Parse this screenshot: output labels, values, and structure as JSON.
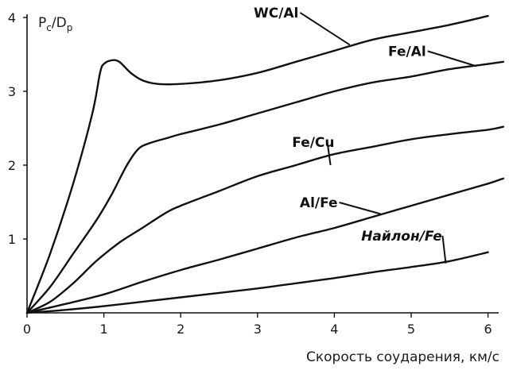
{
  "chart_data": {
    "type": "line",
    "ylabel": {
      "main": "P",
      "sub1": "c",
      "sep": "/D",
      "sub2": "p"
    },
    "xlabel": "Скорость соударения, км/с",
    "xlim": [
      0,
      6.2
    ],
    "ylim": [
      0,
      4.2
    ],
    "x_ticks": [
      0,
      1,
      2,
      3,
      4,
      5,
      6
    ],
    "y_ticks": [
      1,
      2,
      3,
      4
    ],
    "grid": false,
    "series": [
      {
        "name": "WC/Al",
        "style": "normal",
        "points": [
          [
            0,
            0
          ],
          [
            0.3,
            0.8
          ],
          [
            0.6,
            1.75
          ],
          [
            0.85,
            2.7
          ],
          [
            0.95,
            3.25
          ],
          [
            1.0,
            3.37
          ],
          [
            1.1,
            3.42
          ],
          [
            1.2,
            3.4
          ],
          [
            1.35,
            3.25
          ],
          [
            1.5,
            3.15
          ],
          [
            1.7,
            3.1
          ],
          [
            2.0,
            3.1
          ],
          [
            2.5,
            3.15
          ],
          [
            3.0,
            3.25
          ],
          [
            3.5,
            3.4
          ],
          [
            4.0,
            3.55
          ],
          [
            4.5,
            3.7
          ],
          [
            5.0,
            3.8
          ],
          [
            5.5,
            3.9
          ],
          [
            6.0,
            4.02
          ]
        ]
      },
      {
        "name": "Fe/Al",
        "style": "normal",
        "points": [
          [
            0,
            0
          ],
          [
            0.3,
            0.35
          ],
          [
            0.6,
            0.8
          ],
          [
            0.9,
            1.25
          ],
          [
            1.1,
            1.6
          ],
          [
            1.3,
            2.0
          ],
          [
            1.45,
            2.22
          ],
          [
            1.6,
            2.3
          ],
          [
            1.8,
            2.36
          ],
          [
            2.0,
            2.42
          ],
          [
            2.5,
            2.55
          ],
          [
            3.0,
            2.7
          ],
          [
            3.5,
            2.85
          ],
          [
            4.0,
            3.0
          ],
          [
            4.5,
            3.12
          ],
          [
            5.0,
            3.2
          ],
          [
            5.5,
            3.3
          ],
          [
            6.0,
            3.37
          ],
          [
            6.2,
            3.4
          ]
        ]
      },
      {
        "name": "Fe/Cu",
        "style": "normal",
        "points": [
          [
            0,
            0
          ],
          [
            0.3,
            0.15
          ],
          [
            0.6,
            0.4
          ],
          [
            0.9,
            0.7
          ],
          [
            1.2,
            0.95
          ],
          [
            1.5,
            1.15
          ],
          [
            1.8,
            1.35
          ],
          [
            2.0,
            1.45
          ],
          [
            2.5,
            1.65
          ],
          [
            3.0,
            1.85
          ],
          [
            3.5,
            2.0
          ],
          [
            4.0,
            2.15
          ],
          [
            4.5,
            2.25
          ],
          [
            5.0,
            2.35
          ],
          [
            5.5,
            2.42
          ],
          [
            6.0,
            2.48
          ],
          [
            6.2,
            2.52
          ]
        ]
      },
      {
        "name": "Al/Fe",
        "style": "normal",
        "points": [
          [
            0,
            0
          ],
          [
            0.5,
            0.12
          ],
          [
            1.0,
            0.25
          ],
          [
            1.5,
            0.42
          ],
          [
            2.0,
            0.58
          ],
          [
            2.5,
            0.72
          ],
          [
            3.0,
            0.87
          ],
          [
            3.5,
            1.02
          ],
          [
            4.0,
            1.15
          ],
          [
            4.5,
            1.3
          ],
          [
            5.0,
            1.45
          ],
          [
            5.5,
            1.6
          ],
          [
            6.0,
            1.75
          ],
          [
            6.2,
            1.82
          ]
        ]
      },
      {
        "name": "Найлон/Fe",
        "style": "italic",
        "points": [
          [
            0,
            0
          ],
          [
            0.5,
            0.04
          ],
          [
            1.0,
            0.09
          ],
          [
            1.5,
            0.15
          ],
          [
            2.0,
            0.21
          ],
          [
            2.5,
            0.27
          ],
          [
            3.0,
            0.33
          ],
          [
            3.5,
            0.4
          ],
          [
            4.0,
            0.47
          ],
          [
            4.5,
            0.55
          ],
          [
            5.0,
            0.62
          ],
          [
            5.5,
            0.7
          ],
          [
            6.0,
            0.82
          ]
        ]
      }
    ],
    "curve_labels": [
      {
        "series": "WC/Al",
        "text": "WC/Al",
        "x": 2.95,
        "y": 4.0,
        "anchor_x": 4.2,
        "anchor_y": 3.63
      },
      {
        "series": "Fe/Al",
        "text": "Fe/Al",
        "x": 4.7,
        "y": 3.48,
        "anchor_x": 5.85,
        "anchor_y": 3.34
      },
      {
        "series": "Fe/Cu",
        "text": "Fe/Cu",
        "x": 3.45,
        "y": 2.25,
        "anchor_x": 3.95,
        "anchor_y": 2.0
      },
      {
        "series": "Al/Fe",
        "text": "Al/Fe",
        "x": 3.55,
        "y": 1.43,
        "anchor_x": 4.6,
        "anchor_y": 1.34
      },
      {
        "series": "Найлон/Fe",
        "text": "Найлон/Fe",
        "x": 4.35,
        "y": 0.98,
        "anchor_x": 5.45,
        "anchor_y": 0.67
      }
    ]
  }
}
